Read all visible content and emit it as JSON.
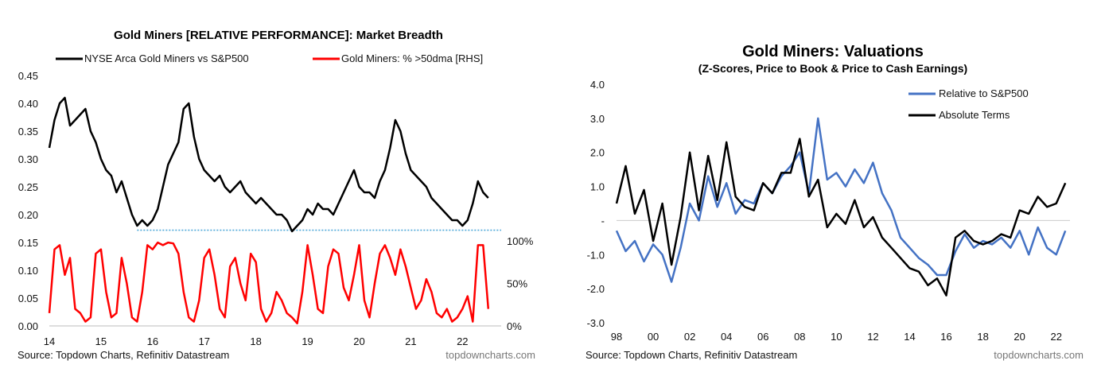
{
  "chart_data": [
    {
      "type": "line",
      "title": "Gold Miners [RELATIVE PERFORMANCE]: Market Breadth",
      "source": "Source: Topdown Charts, Refinitiv Datastream",
      "brand": "topdowncharts.com",
      "xlim": [
        2014.0,
        2022.75
      ],
      "x_ticks": [
        "14",
        "15",
        "16",
        "17",
        "18",
        "19",
        "20",
        "21",
        "22"
      ],
      "ylim": [
        0,
        0.45
      ],
      "y_ticks": [
        "0.00",
        "0.05",
        "0.10",
        "0.15",
        "0.20",
        "0.25",
        "0.30",
        "0.35",
        "0.40",
        "0.45"
      ],
      "y2lim": [
        0,
        100
      ],
      "y2_ticks": [
        "0%",
        "50%",
        "100%"
      ],
      "legend": {
        "position": "top",
        "items": [
          "NYSE Arca Gold Miners vs S&P500",
          "Gold Miners: % >50dma [RHS]"
        ]
      },
      "colors": {
        "relative": "#000000",
        "breadth": "#ff0000",
        "support": "#4fa8d8"
      },
      "support_level": 0.172,
      "series": [
        {
          "name": "NYSE Arca Gold Miners vs S&P500",
          "axis": "left",
          "x": [
            2014.0,
            2014.1,
            2014.2,
            2014.3,
            2014.4,
            2014.5,
            2014.6,
            2014.7,
            2014.8,
            2014.9,
            2015.0,
            2015.1,
            2015.2,
            2015.3,
            2015.4,
            2015.5,
            2015.6,
            2015.7,
            2015.8,
            2015.9,
            2016.0,
            2016.1,
            2016.2,
            2016.3,
            2016.4,
            2016.5,
            2016.55,
            2016.6,
            2016.7,
            2016.8,
            2016.9,
            2017.0,
            2017.1,
            2017.2,
            2017.3,
            2017.4,
            2017.5,
            2017.6,
            2017.7,
            2017.8,
            2017.9,
            2018.0,
            2018.1,
            2018.2,
            2018.3,
            2018.4,
            2018.5,
            2018.6,
            2018.7,
            2018.8,
            2018.9,
            2019.0,
            2019.1,
            2019.2,
            2019.3,
            2019.4,
            2019.5,
            2019.6,
            2019.7,
            2019.8,
            2019.9,
            2020.0,
            2020.1,
            2020.2,
            2020.3,
            2020.4,
            2020.5,
            2020.6,
            2020.7,
            2020.8,
            2020.9,
            2021.0,
            2021.1,
            2021.2,
            2021.3,
            2021.4,
            2021.5,
            2021.6,
            2021.7,
            2021.8,
            2021.9,
            2022.0,
            2022.1,
            2022.2,
            2022.3,
            2022.4,
            2022.5
          ],
          "values": [
            0.32,
            0.37,
            0.4,
            0.41,
            0.36,
            0.37,
            0.38,
            0.39,
            0.35,
            0.33,
            0.3,
            0.28,
            0.27,
            0.24,
            0.26,
            0.23,
            0.2,
            0.18,
            0.19,
            0.18,
            0.19,
            0.21,
            0.25,
            0.29,
            0.31,
            0.33,
            0.36,
            0.39,
            0.4,
            0.34,
            0.3,
            0.28,
            0.27,
            0.26,
            0.27,
            0.25,
            0.24,
            0.25,
            0.26,
            0.24,
            0.23,
            0.22,
            0.23,
            0.22,
            0.21,
            0.2,
            0.2,
            0.19,
            0.17,
            0.18,
            0.19,
            0.21,
            0.2,
            0.22,
            0.21,
            0.21,
            0.2,
            0.22,
            0.24,
            0.26,
            0.28,
            0.25,
            0.24,
            0.24,
            0.23,
            0.26,
            0.28,
            0.32,
            0.37,
            0.35,
            0.31,
            0.28,
            0.27,
            0.26,
            0.25,
            0.23,
            0.22,
            0.21,
            0.2,
            0.19,
            0.19,
            0.18,
            0.19,
            0.22,
            0.26,
            0.24,
            0.23
          ]
        },
        {
          "name": "Gold Miners: % >50dma [RHS]",
          "axis": "right",
          "x": [
            2014.0,
            2014.1,
            2014.2,
            2014.3,
            2014.4,
            2014.5,
            2014.6,
            2014.7,
            2014.8,
            2014.9,
            2015.0,
            2015.1,
            2015.2,
            2015.3,
            2015.4,
            2015.5,
            2015.6,
            2015.7,
            2015.8,
            2015.9,
            2016.0,
            2016.1,
            2016.2,
            2016.3,
            2016.4,
            2016.5,
            2016.6,
            2016.7,
            2016.8,
            2016.9,
            2017.0,
            2017.1,
            2017.2,
            2017.3,
            2017.4,
            2017.5,
            2017.6,
            2017.7,
            2017.8,
            2017.9,
            2018.0,
            2018.1,
            2018.2,
            2018.3,
            2018.4,
            2018.5,
            2018.6,
            2018.7,
            2018.8,
            2018.9,
            2019.0,
            2019.1,
            2019.2,
            2019.3,
            2019.4,
            2019.5,
            2019.6,
            2019.7,
            2019.8,
            2019.9,
            2020.0,
            2020.1,
            2020.2,
            2020.3,
            2020.4,
            2020.5,
            2020.6,
            2020.7,
            2020.8,
            2020.9,
            2021.0,
            2021.1,
            2021.2,
            2021.3,
            2021.4,
            2021.5,
            2021.6,
            2021.7,
            2021.8,
            2021.9,
            2022.0,
            2022.1,
            2022.2,
            2022.3,
            2022.4,
            2022.5
          ],
          "values": [
            15,
            90,
            95,
            60,
            80,
            20,
            15,
            5,
            10,
            85,
            90,
            40,
            10,
            15,
            80,
            50,
            10,
            5,
            40,
            95,
            90,
            98,
            95,
            98,
            97,
            85,
            40,
            10,
            5,
            30,
            80,
            90,
            60,
            20,
            10,
            70,
            80,
            50,
            30,
            85,
            75,
            20,
            5,
            15,
            40,
            30,
            15,
            10,
            3,
            40,
            95,
            60,
            20,
            15,
            70,
            90,
            85,
            45,
            30,
            60,
            95,
            30,
            10,
            50,
            85,
            95,
            80,
            60,
            90,
            70,
            45,
            20,
            30,
            55,
            40,
            15,
            10,
            20,
            5,
            10,
            20,
            35,
            5,
            95,
            95,
            20
          ]
        }
      ]
    },
    {
      "type": "line",
      "title": "Gold Miners: Valuations",
      "subtitle": "(Z-Scores, Price to Book & Price to Cash Earnings)",
      "source": "Source: Topdown Charts, Refinitiv Datastream",
      "brand": "topdowncharts.com",
      "xlim": [
        1998.0,
        2022.75
      ],
      "x_ticks": [
        "98",
        "00",
        "02",
        "04",
        "06",
        "08",
        "10",
        "12",
        "14",
        "16",
        "18",
        "20",
        "22"
      ],
      "ylim": [
        -3.0,
        4.0
      ],
      "y_ticks": [
        "-3.0",
        "-2.0",
        "-1.0",
        "-",
        "1.0",
        "2.0",
        "3.0",
        "4.0"
      ],
      "legend": {
        "position": "top-right",
        "items": [
          "Relative to S&P500",
          "Absolute Terms"
        ]
      },
      "colors": {
        "relative": "#4472c4",
        "absolute": "#000000"
      },
      "series": [
        {
          "name": "Relative to S&P500",
          "x": [
            1998.0,
            1998.5,
            1999.0,
            1999.5,
            2000.0,
            2000.5,
            2001.0,
            2001.5,
            2002.0,
            2002.5,
            2003.0,
            2003.5,
            2004.0,
            2004.5,
            2005.0,
            2005.5,
            2006.0,
            2006.5,
            2007.0,
            2007.5,
            2008.0,
            2008.5,
            2009.0,
            2009.5,
            2010.0,
            2010.5,
            2011.0,
            2011.5,
            2012.0,
            2012.5,
            2013.0,
            2013.5,
            2014.0,
            2014.5,
            2015.0,
            2015.5,
            2016.0,
            2016.5,
            2017.0,
            2017.5,
            2018.0,
            2018.5,
            2019.0,
            2019.5,
            2020.0,
            2020.5,
            2021.0,
            2021.5,
            2022.0,
            2022.5
          ],
          "values": [
            -0.3,
            -0.9,
            -0.6,
            -1.2,
            -0.7,
            -1.0,
            -1.8,
            -0.8,
            0.5,
            0.0,
            1.3,
            0.4,
            1.1,
            0.2,
            0.6,
            0.5,
            1.1,
            0.8,
            1.3,
            1.6,
            2.0,
            0.8,
            3.0,
            1.2,
            1.4,
            1.0,
            1.5,
            1.1,
            1.7,
            0.8,
            0.3,
            -0.5,
            -0.8,
            -1.1,
            -1.3,
            -1.6,
            -1.6,
            -0.9,
            -0.4,
            -0.8,
            -0.6,
            -0.7,
            -0.5,
            -0.8,
            -0.3,
            -1.0,
            -0.2,
            -0.8,
            -1.0,
            -0.3
          ]
        },
        {
          "name": "Absolute Terms",
          "x": [
            1998.0,
            1998.5,
            1999.0,
            1999.5,
            2000.0,
            2000.5,
            2001.0,
            2001.5,
            2002.0,
            2002.5,
            2003.0,
            2003.5,
            2004.0,
            2004.5,
            2005.0,
            2005.5,
            2006.0,
            2006.5,
            2007.0,
            2007.5,
            2008.0,
            2008.5,
            2009.0,
            2009.5,
            2010.0,
            2010.5,
            2011.0,
            2011.5,
            2012.0,
            2012.5,
            2013.0,
            2013.5,
            2014.0,
            2014.5,
            2015.0,
            2015.5,
            2016.0,
            2016.5,
            2017.0,
            2017.5,
            2018.0,
            2018.5,
            2019.0,
            2019.5,
            2020.0,
            2020.5,
            2021.0,
            2021.5,
            2022.0,
            2022.5
          ],
          "values": [
            0.5,
            1.6,
            0.2,
            0.9,
            -0.6,
            0.5,
            -1.3,
            0.1,
            2.0,
            0.3,
            1.9,
            0.6,
            2.3,
            0.7,
            0.4,
            0.3,
            1.1,
            0.8,
            1.4,
            1.4,
            2.4,
            0.7,
            1.2,
            -0.2,
            0.2,
            -0.1,
            0.6,
            -0.2,
            0.1,
            -0.5,
            -0.8,
            -1.1,
            -1.4,
            -1.5,
            -1.9,
            -1.7,
            -2.2,
            -0.5,
            -0.3,
            -0.6,
            -0.7,
            -0.6,
            -0.4,
            -0.5,
            0.3,
            0.2,
            0.7,
            0.4,
            0.5,
            1.1
          ]
        }
      ]
    }
  ]
}
